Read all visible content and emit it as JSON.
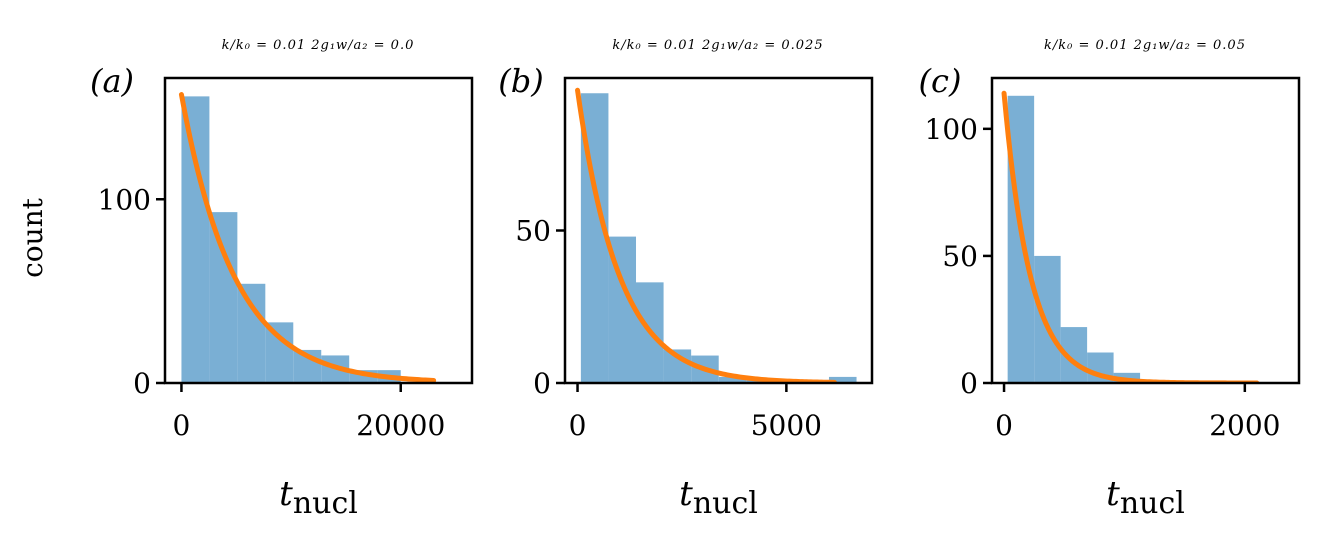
{
  "chart_data": [
    {
      "type": "bar",
      "panel_label": "(a)",
      "title": "k/k₀ = 0.01 2g₁w/a₂ = 0.0",
      "xlabel": "t_nucl",
      "ylabel": "count",
      "xlim": [
        -1500,
        26500
      ],
      "ylim": [
        0,
        166
      ],
      "xticks": [
        0,
        20000
      ],
      "xtick_labels": [
        "0",
        "20000"
      ],
      "yticks": [
        0,
        100
      ],
      "ytick_labels": [
        "0",
        "100"
      ],
      "bins": [
        {
          "x0": 0,
          "x1": 2550,
          "count": 156
        },
        {
          "x0": 2550,
          "x1": 5100,
          "count": 93
        },
        {
          "x0": 5100,
          "x1": 7650,
          "count": 54
        },
        {
          "x0": 7650,
          "x1": 10200,
          "count": 33
        },
        {
          "x0": 10200,
          "x1": 12750,
          "count": 18
        },
        {
          "x0": 12750,
          "x1": 15300,
          "count": 15
        },
        {
          "x0": 15300,
          "x1": 17850,
          "count": 7
        },
        {
          "x0": 17850,
          "x1": 20000,
          "count": 7
        }
      ],
      "fit": {
        "a": 157,
        "tau": 4850,
        "xmax": 23000
      },
      "colors": {
        "bars": "#7aafd4",
        "fit": "#ff7f0e"
      }
    },
    {
      "type": "bar",
      "panel_label": "(b)",
      "title": "k/k₀ = 0.01 2g₁w/a₂ = 0.025",
      "xlabel": "t_nucl",
      "ylabel": "",
      "xlim": [
        -300,
        7050
      ],
      "ylim": [
        0,
        100
      ],
      "xticks": [
        0,
        5000
      ],
      "xtick_labels": [
        "0",
        "5000"
      ],
      "yticks": [
        0,
        50
      ],
      "ytick_labels": [
        "0",
        "50"
      ],
      "bins": [
        {
          "x0": 80,
          "x1": 740,
          "count": 95
        },
        {
          "x0": 740,
          "x1": 1400,
          "count": 48
        },
        {
          "x0": 1400,
          "x1": 2060,
          "count": 33
        },
        {
          "x0": 2060,
          "x1": 2720,
          "count": 11
        },
        {
          "x0": 2720,
          "x1": 3380,
          "count": 9
        },
        {
          "x0": 3380,
          "x1": 4040,
          "count": 2
        },
        {
          "x0": 4040,
          "x1": 4700,
          "count": 1
        },
        {
          "x0": 4700,
          "x1": 5360,
          "count": 1
        },
        {
          "x0": 5360,
          "x1": 6020,
          "count": 1
        },
        {
          "x0": 6020,
          "x1": 6680,
          "count": 2
        }
      ],
      "fit": {
        "a": 96,
        "tau": 1000,
        "xmax": 6150
      },
      "colors": {
        "bars": "#7aafd4",
        "fit": "#ff7f0e"
      }
    },
    {
      "type": "bar",
      "panel_label": "(c)",
      "title": "k/k₀ = 0.01 2g₁w/a₂ = 0.05",
      "xlabel": "t_nucl",
      "ylabel": "",
      "xlim": [
        -100,
        2450
      ],
      "ylim": [
        0,
        120
      ],
      "xticks": [
        0,
        2000
      ],
      "xtick_labels": [
        "0",
        "2000"
      ],
      "yticks": [
        0,
        50,
        100
      ],
      "ytick_labels": [
        "0",
        "50",
        "100"
      ],
      "bins": [
        {
          "x0": 30,
          "x1": 250,
          "count": 113
        },
        {
          "x0": 250,
          "x1": 470,
          "count": 50
        },
        {
          "x0": 470,
          "x1": 690,
          "count": 22
        },
        {
          "x0": 690,
          "x1": 910,
          "count": 12
        },
        {
          "x0": 910,
          "x1": 1130,
          "count": 4
        },
        {
          "x0": 1130,
          "x1": 1350,
          "count": 1
        }
      ],
      "fit": {
        "a": 114,
        "tau": 220,
        "xmax": 2100
      },
      "colors": {
        "bars": "#7aafd4",
        "fit": "#ff7f0e"
      }
    }
  ]
}
